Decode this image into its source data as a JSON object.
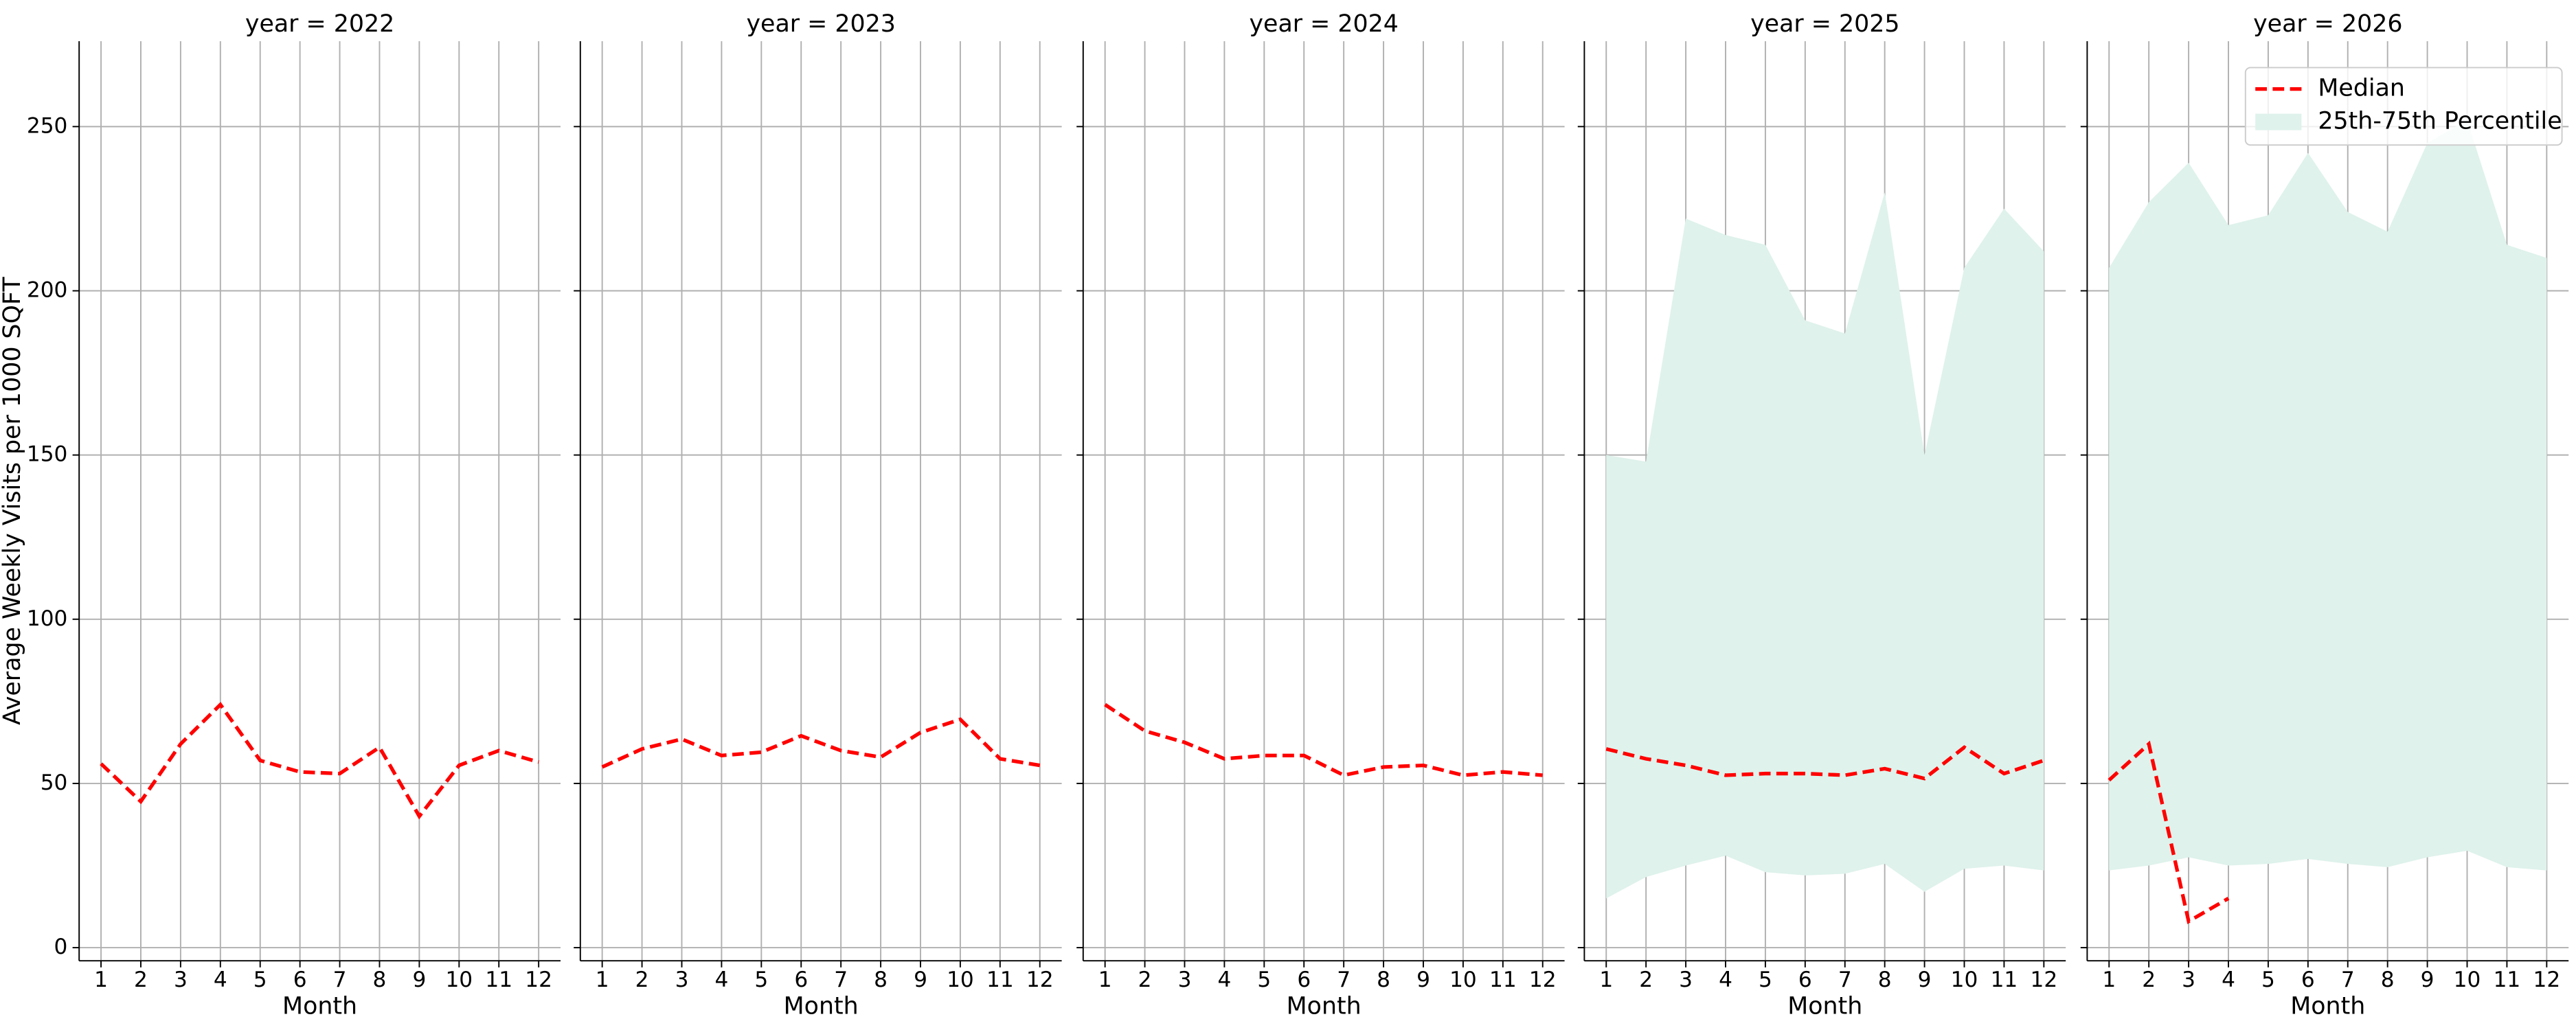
{
  "chart_data": [
    {
      "type": "line",
      "title": "year = 2022",
      "xlabel": "Month",
      "ylabel": "Average Weekly Visits per 1000 SQFT",
      "x": [
        1,
        2,
        3,
        4,
        5,
        6,
        7,
        8,
        9,
        10,
        11,
        12
      ],
      "xlim": [
        0.45,
        12.55
      ],
      "ylim": [
        -4,
        276
      ],
      "yticks": [
        0,
        50,
        100,
        150,
        200,
        250
      ],
      "grid": true,
      "series": [
        {
          "color": "#ff0000",
          "values": [
            56,
            44.5,
            62,
            74,
            57,
            53.5,
            53,
            61,
            40,
            55.5,
            60,
            56.5
          ]
        }
      ]
    },
    {
      "type": "line",
      "title": "year = 2023",
      "xlabel": "Month",
      "x": [
        1,
        2,
        3,
        4,
        5,
        6,
        7,
        8,
        9,
        10,
        11,
        12
      ],
      "xlim": [
        0.45,
        12.55
      ],
      "ylim": [
        -4,
        276
      ],
      "yticks": [
        0,
        50,
        100,
        150,
        200,
        250
      ],
      "grid": true,
      "series": [
        {
          "color": "#ff0000",
          "values": [
            55,
            60.5,
            63.5,
            58.5,
            59.5,
            64.5,
            60,
            58,
            65.5,
            69.5,
            57.5,
            55.5
          ]
        }
      ]
    },
    {
      "type": "line",
      "title": "year = 2024",
      "xlabel": "Month",
      "x": [
        1,
        2,
        3,
        4,
        5,
        6,
        7,
        8,
        9,
        10,
        11,
        12
      ],
      "xlim": [
        0.45,
        12.55
      ],
      "ylim": [
        -4,
        276
      ],
      "yticks": [
        0,
        50,
        100,
        150,
        200,
        250
      ],
      "grid": true,
      "series": [
        {
          "color": "#ff0000",
          "values": [
            74,
            66,
            62.5,
            57.5,
            58.5,
            58.5,
            52.5,
            55,
            55.5,
            52.5,
            53.5,
            52.5
          ]
        }
      ]
    },
    {
      "type": "line",
      "title": "year = 2025",
      "xlabel": "Month",
      "x": [
        1,
        2,
        3,
        4,
        5,
        6,
        7,
        8,
        9,
        10,
        11,
        12
      ],
      "xlim": [
        0.45,
        12.55
      ],
      "ylim": [
        -4,
        276
      ],
      "yticks": [
        0,
        50,
        100,
        150,
        200,
        250
      ],
      "grid": true,
      "series": [
        {
          "color": "#ff0000",
          "values": [
            60.5,
            57.5,
            55.5,
            52.5,
            53,
            53,
            52.5,
            54.5,
            51.5,
            61,
            53,
            57
          ]
        },
        {
          "color": "#dff2ec",
          "lower": [
            15,
            21.5,
            25,
            28,
            23,
            22,
            22.5,
            25.5,
            17,
            24,
            25,
            23.5
          ],
          "upper": [
            150,
            148,
            222,
            217,
            214,
            191,
            187,
            230,
            150,
            207,
            225,
            212
          ]
        }
      ]
    },
    {
      "type": "line",
      "title": "year = 2026",
      "xlabel": "Month",
      "legend": "upper right",
      "x": [
        1,
        2,
        3,
        4,
        5,
        6,
        7,
        8,
        9,
        10,
        11,
        12
      ],
      "xlim": [
        0.45,
        12.55
      ],
      "ylim": [
        -4,
        276
      ],
      "yticks": [
        0,
        50,
        100,
        150,
        200,
        250
      ],
      "grid": true,
      "series": [
        {
          "name": "Median",
          "color": "#ff0000",
          "values": [
            51,
            62,
            8,
            15,
            null,
            null,
            null,
            null,
            null,
            null,
            null,
            null
          ]
        },
        {
          "name": "25th-75th Percentile",
          "color": "#dff2ec",
          "lower": [
            23.5,
            25,
            27.5,
            25,
            25.5,
            27,
            25.5,
            24.5,
            27.5,
            29.5,
            24.5,
            23.5
          ],
          "upper": [
            207,
            227,
            239,
            220,
            223,
            242,
            224,
            218,
            245,
            252,
            214,
            210
          ]
        }
      ]
    }
  ]
}
